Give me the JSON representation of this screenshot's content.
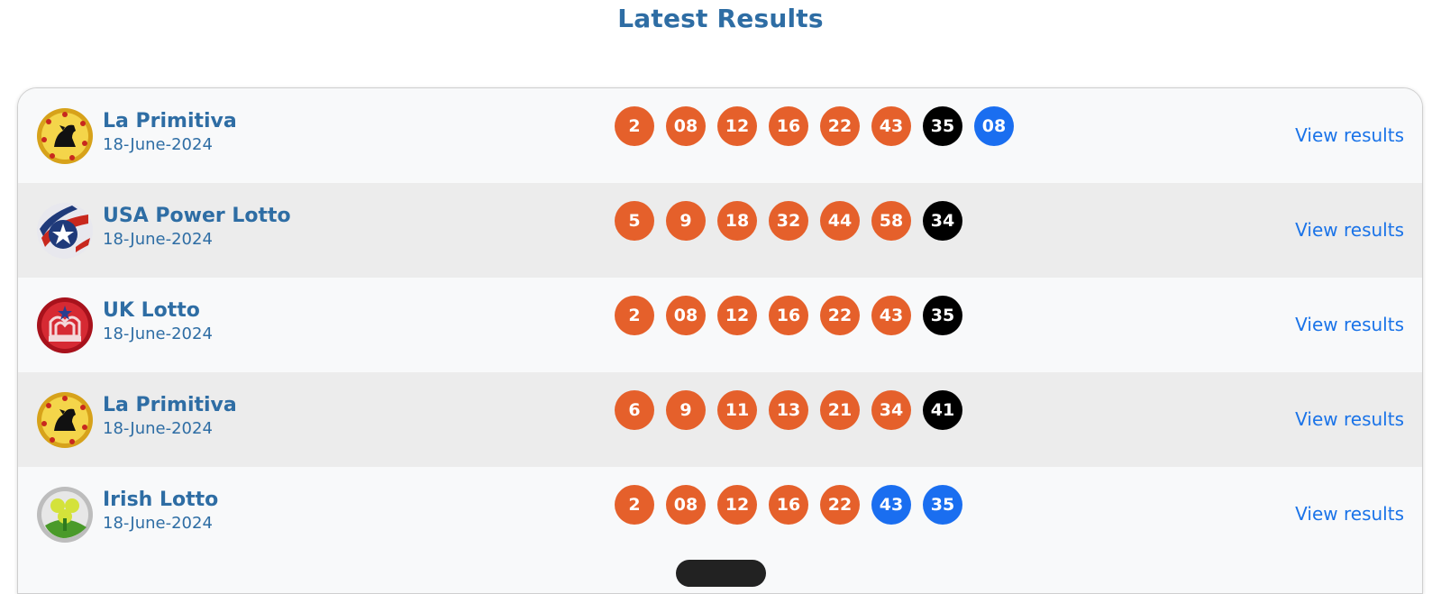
{
  "page": {
    "title": "Latest Results",
    "link_color": "#1a73e8",
    "heading_color": "#2e6da4"
  },
  "ball_colors": {
    "main": "#e5602b",
    "black": "#000000",
    "blue": "#1a6ef0"
  },
  "results": [
    {
      "logo_icon": "la-primitiva-logo-icon",
      "name": "La Primitiva",
      "date": "18-June-2024",
      "balls": [
        {
          "value": "2",
          "kind": "main"
        },
        {
          "value": "08",
          "kind": "main"
        },
        {
          "value": "12",
          "kind": "main"
        },
        {
          "value": "16",
          "kind": "main"
        },
        {
          "value": "22",
          "kind": "main"
        },
        {
          "value": "43",
          "kind": "main"
        },
        {
          "value": "35",
          "kind": "black"
        },
        {
          "value": "08",
          "kind": "blue"
        }
      ],
      "link": "View results"
    },
    {
      "logo_icon": "usa-power-lotto-logo-icon",
      "name": "USA Power Lotto",
      "date": "18-June-2024",
      "balls": [
        {
          "value": "5",
          "kind": "main"
        },
        {
          "value": "9",
          "kind": "main"
        },
        {
          "value": "18",
          "kind": "main"
        },
        {
          "value": "32",
          "kind": "main"
        },
        {
          "value": "44",
          "kind": "main"
        },
        {
          "value": "58",
          "kind": "main"
        },
        {
          "value": "34",
          "kind": "black"
        }
      ],
      "link": "View results"
    },
    {
      "logo_icon": "uk-lotto-logo-icon",
      "name": "UK Lotto",
      "date": "18-June-2024",
      "balls": [
        {
          "value": "2",
          "kind": "main"
        },
        {
          "value": "08",
          "kind": "main"
        },
        {
          "value": "12",
          "kind": "main"
        },
        {
          "value": "16",
          "kind": "main"
        },
        {
          "value": "22",
          "kind": "main"
        },
        {
          "value": "43",
          "kind": "main"
        },
        {
          "value": "35",
          "kind": "black"
        }
      ],
      "link": "View results"
    },
    {
      "logo_icon": "la-primitiva-logo-icon",
      "name": "La Primitiva",
      "date": "18-June-2024",
      "balls": [
        {
          "value": "6",
          "kind": "main"
        },
        {
          "value": "9",
          "kind": "main"
        },
        {
          "value": "11",
          "kind": "main"
        },
        {
          "value": "13",
          "kind": "main"
        },
        {
          "value": "21",
          "kind": "main"
        },
        {
          "value": "34",
          "kind": "main"
        },
        {
          "value": "41",
          "kind": "black"
        }
      ],
      "link": "View results"
    },
    {
      "logo_icon": "irish-lotto-logo-icon",
      "name": "Irish Lotto",
      "date": "18-June-2024",
      "balls": [
        {
          "value": "2",
          "kind": "main"
        },
        {
          "value": "08",
          "kind": "main"
        },
        {
          "value": "12",
          "kind": "main"
        },
        {
          "value": "16",
          "kind": "main"
        },
        {
          "value": "22",
          "kind": "main"
        },
        {
          "value": "43",
          "kind": "blue"
        },
        {
          "value": "35",
          "kind": "blue"
        }
      ],
      "link": "View results"
    }
  ]
}
